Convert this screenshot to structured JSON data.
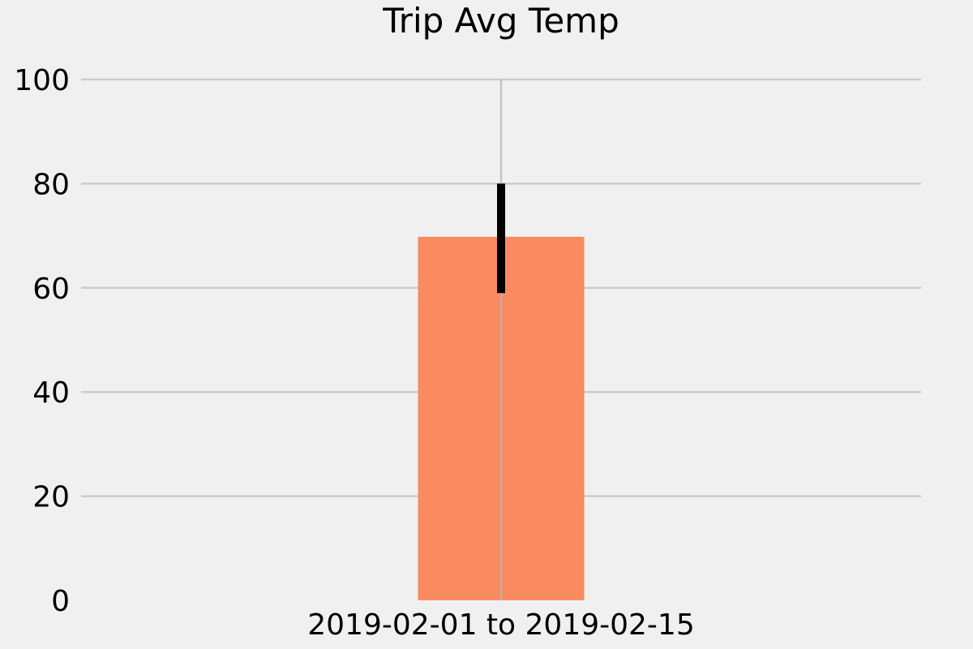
{
  "chart_data": {
    "type": "bar",
    "title": "Trip Avg Temp",
    "xlabel": "",
    "ylabel": "",
    "categories": [
      "2019-02-01 to 2019-02-15"
    ],
    "values": [
      69.8
    ],
    "error": {
      "lower": 59,
      "upper": 80
    },
    "ylim": [
      0,
      100
    ],
    "yticks": [
      0,
      20,
      40,
      60,
      80,
      100
    ],
    "grid": true,
    "colors": {
      "background": "#f0f0f0",
      "bar": "#fa8a60",
      "error_bar": "#000000",
      "grid": "#cbcbcb"
    }
  }
}
